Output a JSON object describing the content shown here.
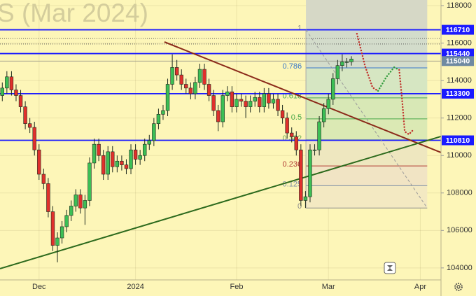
{
  "chart_data": {
    "type": "candlestick",
    "title": "S (Mar 2024)",
    "categories": [
      null,
      null,
      null,
      null,
      null,
      null,
      null,
      null,
      "Dec",
      null,
      null,
      null,
      null,
      null,
      null,
      null,
      null,
      null,
      null,
      null,
      null,
      null,
      null,
      null,
      null,
      null,
      null,
      null,
      null,
      "2024",
      null,
      null,
      null,
      null,
      null,
      null,
      null,
      null,
      null,
      null,
      null,
      null,
      null,
      null,
      null,
      null,
      null,
      null,
      null,
      null,
      null,
      "Feb",
      null,
      null,
      null,
      null,
      null,
      null,
      null,
      null,
      null,
      null,
      null,
      null,
      null,
      null,
      null,
      null,
      null,
      null,
      null,
      "Mar",
      null,
      null,
      null,
      null,
      null,
      null,
      null,
      null,
      null,
      null,
      null,
      null,
      null,
      null,
      null,
      null,
      null,
      null,
      null,
      "Apr",
      null,
      null,
      null,
      null
    ],
    "open": [
      113200,
      113600,
      114200,
      113500,
      113200,
      112600,
      111700,
      111500,
      110300,
      109000,
      108500,
      107000,
      105200,
      105600,
      106200,
      106800,
      107300,
      107900,
      107200,
      107600,
      109600,
      110600,
      110000,
      109000,
      110200,
      109400,
      109700,
      109500,
      109300,
      110300,
      109800,
      110000,
      110600,
      110800,
      111700,
      112200,
      112400,
      113800,
      114700,
      114300,
      113800,
      113600,
      113300,
      113900,
      114600,
      113800,
      113200,
      112400,
      111800,
      113200,
      113400,
      112600,
      113000,
      112900,
      112600,
      112900,
      113100,
      112600,
      113300,
      112800,
      113000,
      112400,
      112000,
      111200,
      111000,
      110300,
      107600,
      107800,
      110300,
      110300,
      111800,
      112500,
      113000,
      114100,
      114800,
      115000,
      115000,
      null,
      null,
      null,
      null,
      null,
      null,
      null,
      null,
      null,
      null,
      null,
      null,
      null,
      null,
      null,
      null,
      null,
      null,
      null
    ],
    "high": [
      113900,
      114500,
      114500,
      113800,
      113500,
      112900,
      112000,
      111800,
      110600,
      109300,
      108800,
      107300,
      105900,
      106500,
      107100,
      107600,
      108200,
      108200,
      107900,
      109900,
      110900,
      110900,
      110300,
      110500,
      110500,
      110000,
      110000,
      109800,
      110600,
      110600,
      110300,
      110900,
      111100,
      112000,
      112500,
      112700,
      114100,
      115400,
      115100,
      114600,
      114100,
      113900,
      114200,
      114900,
      114900,
      114100,
      113500,
      112700,
      113500,
      113700,
      113700,
      113300,
      113300,
      113200,
      113200,
      113400,
      113400,
      113600,
      113600,
      113300,
      113300,
      112700,
      112300,
      111500,
      111300,
      110600,
      108100,
      110600,
      110600,
      112100,
      112800,
      113300,
      114400,
      115100,
      115400,
      115200,
      115300,
      null,
      null,
      null,
      null,
      null,
      null,
      null,
      null,
      null,
      null,
      null,
      null,
      null,
      null,
      null,
      null,
      null,
      null,
      null
    ],
    "low": [
      112900,
      113300,
      113200,
      112900,
      112300,
      111400,
      111200,
      110000,
      108700,
      108200,
      106700,
      104900,
      104300,
      105300,
      105900,
      106500,
      107000,
      106900,
      106300,
      107300,
      109300,
      109700,
      108700,
      108700,
      109100,
      109100,
      109200,
      109000,
      109000,
      109500,
      109500,
      109700,
      110300,
      110500,
      111400,
      111900,
      112100,
      113500,
      114000,
      113500,
      113300,
      113000,
      113000,
      113600,
      113500,
      112900,
      112100,
      111300,
      111500,
      112900,
      112300,
      112300,
      112600,
      112000,
      112300,
      112600,
      112300,
      112300,
      112500,
      112500,
      112100,
      111700,
      110900,
      110700,
      110000,
      107300,
      107200,
      107500,
      110000,
      110000,
      111500,
      112200,
      112700,
      113800,
      114500,
      114700,
      114800,
      null,
      null,
      null,
      null,
      null,
      null,
      null,
      null,
      null,
      null,
      null,
      null,
      null,
      null,
      null,
      null,
      null,
      null,
      null
    ],
    "close": [
      113600,
      114200,
      113500,
      113200,
      112600,
      111700,
      111500,
      110300,
      109000,
      108500,
      107000,
      105200,
      105600,
      106200,
      106800,
      107300,
      107900,
      107200,
      107600,
      109600,
      110600,
      110000,
      109000,
      110200,
      109400,
      109700,
      109500,
      109300,
      110300,
      109800,
      110000,
      110600,
      110800,
      111700,
      112200,
      112400,
      113800,
      114700,
      114300,
      113800,
      113600,
      113300,
      113900,
      114600,
      113800,
      113200,
      112400,
      111800,
      113200,
      113400,
      112600,
      113000,
      112900,
      112600,
      112900,
      113100,
      112600,
      113300,
      112800,
      113000,
      112400,
      112000,
      111200,
      111000,
      110300,
      107600,
      107800,
      110300,
      110300,
      111800,
      112500,
      113000,
      114100,
      114800,
      115000,
      115000,
      115150,
      null,
      null,
      null,
      null,
      null,
      null,
      null,
      null,
      null,
      null,
      null,
      null,
      null,
      null,
      null,
      null,
      null,
      null,
      null
    ],
    "up_color": "#3cbf55",
    "down_color": "#e0302c",
    "ylim": [
      103360,
      118300
    ],
    "yticks": [
      104000,
      106000,
      108000,
      110000,
      112000,
      114000,
      116000,
      118000
    ],
    "grid": true,
    "levels": [
      116710,
      115440,
      113300,
      110810
    ],
    "level_color": "#1a1aff",
    "last_price": 115040,
    "dotted_levels": [
      116250,
      115950
    ],
    "fib": {
      "low": 107200,
      "high": 116710,
      "x": [
        66.1,
        92.5
      ],
      "levels": [
        0,
        0.125,
        0.236,
        0.382,
        0.5,
        0.618,
        0.786,
        1
      ],
      "level_colors": [
        "#8a8a8a",
        "#7d8fa5",
        "#b03a32",
        "#6aa84f",
        "#48a848",
        "#48a848",
        "#3a78c8",
        "#8a8a8a"
      ],
      "zone_colors": [
        "#f3e9c2",
        "#f1e4c4",
        "#eee7bf",
        "#dbe9b4",
        "#d8e8b6",
        "#d6e6c2",
        "#d3dccb"
      ]
    },
    "trendlines": [
      {
        "color": "#8b2a1a",
        "points": [
          [
            35.3,
            116060
          ],
          [
            95.5,
            110160
          ]
        ]
      },
      {
        "color": "#2e6b1e",
        "points": [
          [
            -0.5,
            103960
          ],
          [
            95.5,
            111020
          ]
        ]
      }
    ],
    "fib_trend": {
      "color": "#9a9a9a",
      "points": [
        [
          66.1,
          116710
        ],
        [
          92.5,
          107200
        ]
      ]
    },
    "forecast": [
      {
        "color": "#c0302a",
        "points": [
          [
            77.2,
            116500
          ],
          [
            79.0,
            114750
          ],
          [
            80.6,
            113630
          ],
          [
            81.8,
            113450
          ]
        ]
      },
      {
        "color": "#2f9a3a",
        "points": [
          [
            81.8,
            113450
          ],
          [
            83.6,
            114190
          ],
          [
            85.3,
            114710
          ],
          [
            86.4,
            114570
          ]
        ]
      },
      {
        "color": "#c0302a",
        "points": [
          [
            86.4,
            114570
          ],
          [
            87.0,
            113070
          ],
          [
            87.6,
            111280
          ],
          [
            88.5,
            111130
          ],
          [
            89.4,
            111350
          ]
        ]
      }
    ]
  }
}
